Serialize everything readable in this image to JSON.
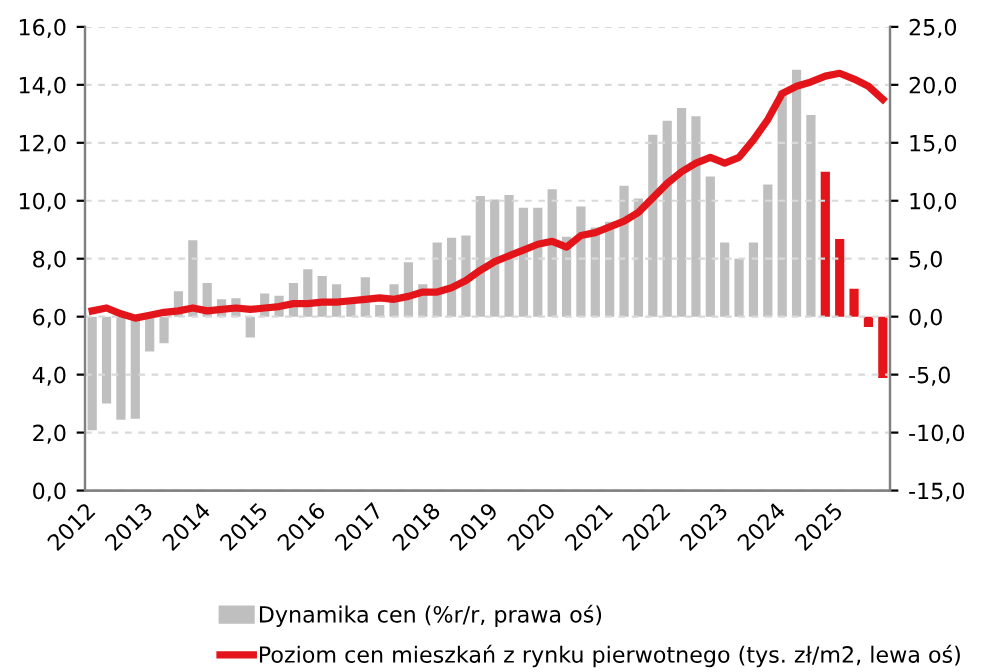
{
  "chart_data": {
    "type": "bar",
    "x": [
      2012.125,
      2012.375,
      2012.625,
      2012.875,
      2013.125,
      2013.375,
      2013.625,
      2013.875,
      2014.125,
      2014.375,
      2014.625,
      2014.875,
      2015.125,
      2015.375,
      2015.625,
      2015.875,
      2016.125,
      2016.375,
      2016.625,
      2016.875,
      2017.125,
      2017.375,
      2017.625,
      2017.875,
      2018.125,
      2018.375,
      2018.625,
      2018.875,
      2019.125,
      2019.375,
      2019.625,
      2019.875,
      2020.125,
      2020.375,
      2020.625,
      2020.875,
      2021.125,
      2021.375,
      2021.625,
      2021.875,
      2022.125,
      2022.375,
      2022.625,
      2022.875,
      2023.125,
      2023.375,
      2023.625,
      2023.875,
      2024.125,
      2024.375,
      2024.625,
      2024.875,
      2025.125,
      2025.375,
      2025.625,
      2025.875
    ],
    "series": [
      {
        "name": "Dynamika cen (%r/r, prawa oś)",
        "axis": "y2",
        "color": "#bfbfbf",
        "colors": [
          "#bfbfbf",
          "#bfbfbf",
          "#bfbfbf",
          "#bfbfbf",
          "#bfbfbf",
          "#bfbfbf",
          "#bfbfbf",
          "#bfbfbf",
          "#bfbfbf",
          "#bfbfbf",
          "#bfbfbf",
          "#bfbfbf",
          "#bfbfbf",
          "#bfbfbf",
          "#bfbfbf",
          "#bfbfbf",
          "#bfbfbf",
          "#bfbfbf",
          "#bfbfbf",
          "#bfbfbf",
          "#bfbfbf",
          "#bfbfbf",
          "#bfbfbf",
          "#bfbfbf",
          "#bfbfbf",
          "#bfbfbf",
          "#bfbfbf",
          "#bfbfbf",
          "#bfbfbf",
          "#bfbfbf",
          "#bfbfbf",
          "#bfbfbf",
          "#bfbfbf",
          "#bfbfbf",
          "#bfbfbf",
          "#bfbfbf",
          "#bfbfbf",
          "#bfbfbf",
          "#bfbfbf",
          "#bfbfbf",
          "#bfbfbf",
          "#bfbfbf",
          "#bfbfbf",
          "#bfbfbf",
          "#bfbfbf",
          "#bfbfbf",
          "#bfbfbf",
          "#bfbfbf",
          "#bfbfbf",
          "#bfbfbf",
          "#bfbfbf",
          "#e3151a",
          "#e3151a",
          "#e3151a",
          "#e3151a",
          "#e3151a"
        ],
        "values": [
          -9.8,
          -7.5,
          -8.9,
          -8.8,
          -3.0,
          -2.3,
          2.2,
          6.6,
          2.9,
          1.5,
          1.6,
          -1.8,
          2.0,
          1.8,
          2.9,
          4.1,
          3.5,
          2.8,
          1.3,
          3.4,
          1.0,
          2.8,
          4.7,
          2.8,
          6.4,
          6.8,
          7.0,
          10.4,
          10.1,
          10.5,
          9.4,
          9.4,
          11.0,
          6.9,
          9.5,
          7.7,
          8.2,
          11.3,
          10.2,
          15.7,
          16.9,
          18.0,
          17.3,
          12.1,
          6.4,
          5.0,
          6.4,
          11.4,
          19.5,
          21.3,
          17.4,
          12.5,
          6.7,
          2.4,
          -0.9,
          -5.3
        ]
      },
      {
        "name": "Poziom cen mieszkań z rynku pierwotnego (tys. zł/m2, lewa oś)",
        "type": "line",
        "color": "#e3151a",
        "line_style": "solid",
        "values": [
          6.2,
          6.3,
          6.1,
          5.95,
          6.05,
          6.15,
          6.2,
          6.3,
          6.2,
          6.25,
          6.3,
          6.25,
          6.3,
          6.35,
          6.45,
          6.45,
          6.5,
          6.5,
          6.55,
          6.6,
          6.65,
          6.6,
          6.7,
          6.85,
          6.85,
          7.0,
          7.25,
          7.6,
          7.9,
          8.1,
          8.3,
          8.5,
          8.6,
          8.4,
          8.8,
          8.9,
          9.1,
          9.3,
          9.6,
          10.1,
          10.6,
          11.0,
          11.3,
          11.5,
          11.3,
          11.5,
          12.1,
          12.8,
          13.7,
          13.95,
          14.1,
          14.3,
          14.4,
          14.2,
          13.95,
          13.5
        ]
      }
    ],
    "xlim": [
      2012,
      2026
    ],
    "xticks": [
      2012,
      2013,
      2014,
      2015,
      2016,
      2017,
      2018,
      2019,
      2020,
      2021,
      2022,
      2023,
      2024,
      2025
    ],
    "ylim": [
      0,
      16
    ],
    "yticks": [
      {
        "value": 0,
        "label": "0,0"
      },
      {
        "value": 2,
        "label": "2,0"
      },
      {
        "value": 4,
        "label": "4,0"
      },
      {
        "value": 6,
        "label": "6,0"
      },
      {
        "value": 8,
        "label": "8,0"
      },
      {
        "value": 10,
        "label": "10,0"
      },
      {
        "value": 12,
        "label": "12,0"
      },
      {
        "value": 14,
        "label": "14,0"
      },
      {
        "value": 16,
        "label": "16,0"
      }
    ],
    "y2lim": [
      -15,
      25
    ],
    "y2ticks": [
      {
        "value": -15,
        "label": "-15,0"
      },
      {
        "value": -10,
        "label": "-10,0"
      },
      {
        "value": -5,
        "label": "-5,0"
      },
      {
        "value": 0,
        "label": "0,0"
      },
      {
        "value": 5,
        "label": "5,0"
      },
      {
        "value": 10,
        "label": "10,0"
      },
      {
        "value": 15,
        "label": "15,0"
      },
      {
        "value": 20,
        "label": "20,0"
      },
      {
        "value": 25,
        "label": "25,0"
      }
    ],
    "grid": "y",
    "legend": "bottom",
    "marker": "none"
  }
}
